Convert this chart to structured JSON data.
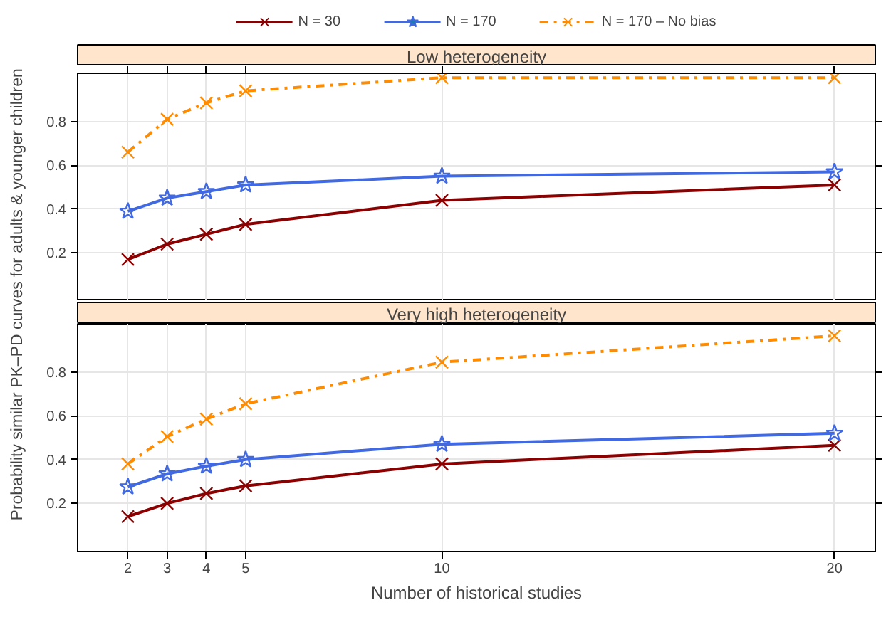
{
  "chart_data": [
    {
      "type": "line",
      "title": "Low heterogeneity",
      "ylabel": "Probability similar PK–PD curves for adults & younger children",
      "x": [
        2,
        3,
        4,
        5,
        10,
        20
      ],
      "xlim": [
        0.72,
        21.04
      ],
      "xticks": [
        2,
        3,
        4,
        5,
        10,
        20
      ],
      "ylim": [
        -0.02,
        1.02
      ],
      "yticks": [
        0.2,
        0.4,
        0.6,
        0.8
      ],
      "grid": true,
      "legend": "top",
      "tick_labels": "y",
      "series": [
        {
          "name": "N = 30",
          "color": "#8b0000",
          "marker": "cross",
          "line_style": "solid",
          "values": [
            0.17,
            0.24,
            0.285,
            0.33,
            0.44,
            0.51
          ]
        },
        {
          "name": "N = 170",
          "color": "#4169e1",
          "marker": "star",
          "line_style": "solid",
          "values": [
            0.39,
            0.45,
            0.48,
            0.51,
            0.55,
            0.57
          ]
        },
        {
          "name": "N = 170 – No bias",
          "color": "#ff8c00",
          "marker": "cross",
          "line_style": "dashed",
          "values": [
            0.66,
            0.81,
            0.885,
            0.94,
            1.0,
            1.0
          ]
        }
      ]
    },
    {
      "type": "line",
      "title": "Very high heterogeneity",
      "xlabel": "Number of historical studies",
      "x": [
        2,
        3,
        4,
        5,
        10,
        20
      ],
      "xlim": [
        0.72,
        21.04
      ],
      "xticks": [
        2,
        3,
        4,
        5,
        10,
        20
      ],
      "ylim": [
        -0.02,
        1.02
      ],
      "yticks": [
        0.2,
        0.4,
        0.6,
        0.8
      ],
      "grid": true,
      "series": [
        {
          "color": "#8b0000",
          "marker": "cross",
          "line_style": "solid",
          "values": [
            0.14,
            0.2,
            0.245,
            0.28,
            0.38,
            0.465
          ]
        },
        {
          "color": "#4169e1",
          "marker": "star",
          "line_style": "solid",
          "values": [
            0.275,
            0.335,
            0.37,
            0.4,
            0.47,
            0.52
          ]
        },
        {
          "color": "#ff8c00",
          "marker": "cross",
          "line_style": "dashed",
          "values": [
            0.38,
            0.505,
            0.585,
            0.655,
            0.845,
            0.965
          ]
        }
      ]
    }
  ]
}
